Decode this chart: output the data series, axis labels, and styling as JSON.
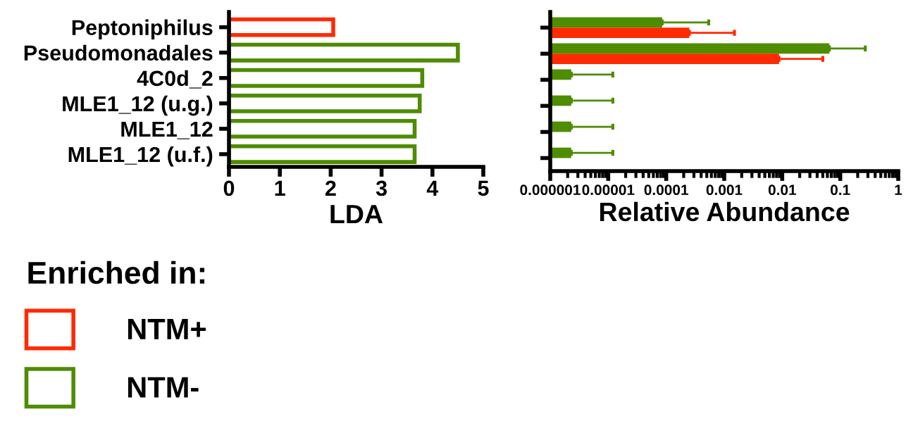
{
  "chart_data": [
    {
      "type": "bar",
      "orientation": "horizontal",
      "stacked": true,
      "xlabel": "LDA",
      "legend_title": "Enriched in:",
      "legend": "bottom left",
      "categories": [
        "Peptoniphilus",
        "Pseudomonadales",
        "4C0d_2",
        "MLE1_12 (u.g.)",
        "MLE1_12",
        "MLE1_12 (u.f.)"
      ],
      "series": [
        {
          "name": "NTM+",
          "color": "#ff2a00",
          "values": [
            2.05,
            null,
            null,
            null,
            null,
            null
          ]
        },
        {
          "name": "NTM-",
          "color": "#4e8c00",
          "values": [
            null,
            4.5,
            3.8,
            3.75,
            3.65,
            3.65
          ]
        }
      ],
      "xlim": [
        0,
        5
      ],
      "xticks": [
        0,
        1,
        2,
        3,
        4,
        5
      ]
    },
    {
      "type": "bar",
      "orientation": "horizontal",
      "xlabel": "Relative Abundance",
      "log": "x",
      "tick_labels": "x",
      "categories": [
        null,
        null,
        null,
        null,
        null,
        null
      ],
      "series": [
        {
          "color": "#4e8c00",
          "values": [
            8.5e-05,
            0.065,
            2.3e-06,
            2.3e-06,
            2.3e-06,
            2.3e-06
          ],
          "errors": [
            [
              8.5e-05,
              0.00054
            ],
            [
              0.065,
              0.27
            ],
            [
              2.3e-06,
              1.2e-05
            ],
            [
              2.3e-06,
              1.2e-05
            ],
            [
              2.3e-06,
              1.2e-05
            ],
            [
              2.3e-06,
              1.2e-05
            ]
          ]
        },
        {
          "color": "#ff2a00",
          "values": [
            0.00025,
            0.0088,
            null,
            null,
            null,
            null
          ],
          "errors": [
            [
              0.00025,
              0.0015
            ],
            [
              0.0088,
              0.05
            ],
            null,
            null,
            null,
            null
          ]
        }
      ],
      "xlim": [
        1e-06,
        1
      ],
      "xticks": [
        {
          "value": 1e-06,
          "label": "0.000001"
        },
        {
          "value": 1e-05,
          "label": "0.00001"
        },
        {
          "value": 0.0001,
          "label": "0.0001"
        },
        {
          "value": 0.001,
          "label": "0.001"
        },
        {
          "value": 0.01,
          "label": "0.01"
        },
        {
          "value": 0.1,
          "label": "0.1"
        },
        {
          "value": 1,
          "label": "1"
        }
      ]
    }
  ]
}
